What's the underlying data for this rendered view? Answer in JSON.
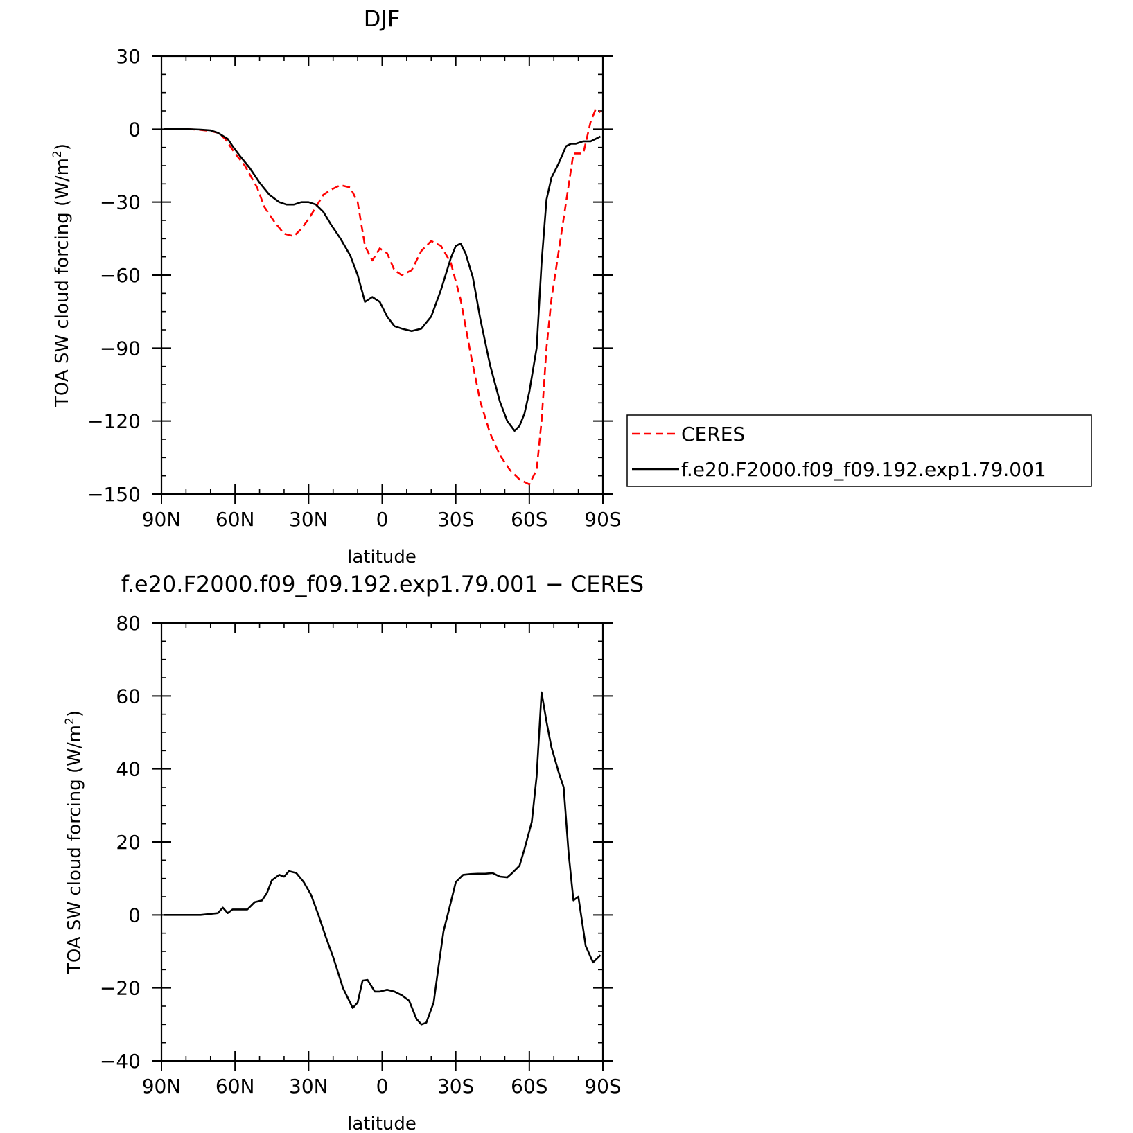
{
  "colors": {
    "ceres": "#ff0000",
    "model": "#000000",
    "axis": "#000000",
    "background": "#ffffff"
  },
  "chart_data": [
    {
      "type": "line",
      "title": "DJF",
      "xlabel": "latitude",
      "ylabel_main": "TOA SW cloud forcing (W/m",
      "ylabel_sup": "2",
      "ylabel_close": ")",
      "xlim": [
        90,
        -90
      ],
      "ylim": [
        -150,
        30
      ],
      "x_ticks": [
        {
          "value": 90,
          "label": "90N"
        },
        {
          "value": 60,
          "label": "60N"
        },
        {
          "value": 30,
          "label": "30N"
        },
        {
          "value": 0,
          "label": "0"
        },
        {
          "value": -30,
          "label": "30S"
        },
        {
          "value": -60,
          "label": "60S"
        },
        {
          "value": -90,
          "label": "90S"
        }
      ],
      "y_ticks": [
        {
          "value": 30,
          "label": "30"
        },
        {
          "value": 0,
          "label": "0"
        },
        {
          "value": -30,
          "label": "−30"
        },
        {
          "value": -60,
          "label": "−60"
        },
        {
          "value": -90,
          "label": "−90"
        },
        {
          "value": -120,
          "label": "−120"
        },
        {
          "value": -150,
          "label": "−150"
        }
      ],
      "legend": "right",
      "series": [
        {
          "name": "CERES",
          "style": "dashed",
          "color": "#ff0000",
          "x": [
            89,
            84,
            79,
            74,
            70,
            67,
            64,
            60,
            56,
            51,
            48,
            44,
            40,
            36,
            33,
            30,
            27,
            24,
            21,
            17,
            13,
            10,
            7,
            4,
            1,
            -2,
            -5,
            -8,
            -12,
            -16,
            -20,
            -24,
            -28,
            -32,
            -36,
            -40,
            -44,
            -48,
            -52,
            -56,
            -60,
            -63,
            -65,
            -67,
            -69,
            -72,
            -75,
            -78,
            -80,
            -82,
            -85,
            -87,
            -89
          ],
          "y": [
            0,
            0,
            0,
            -0.3,
            -0.8,
            -1.5,
            -4,
            -10,
            -15,
            -24,
            -32,
            -38,
            -43,
            -44,
            -41,
            -37,
            -32,
            -27,
            -25,
            -23,
            -24,
            -30,
            -48,
            -54,
            -49,
            -51,
            -58,
            -60,
            -58,
            -50,
            -46,
            -48,
            -55,
            -70,
            -92,
            -112,
            -125,
            -134,
            -140,
            -144,
            -146,
            -140,
            -120,
            -90,
            -70,
            -50,
            -30,
            -10,
            -10,
            -10,
            3,
            8,
            7
          ]
        },
        {
          "name": "f.e20.F2000.f09_f09.192.exp1.79.001",
          "style": "solid",
          "color": "#000000",
          "x": [
            89,
            84,
            79,
            74,
            70,
            67,
            63,
            61,
            58,
            54,
            50,
            46,
            42,
            39,
            36,
            33,
            30,
            27,
            24,
            21,
            17,
            13,
            10,
            7,
            4,
            1,
            -2,
            -5,
            -8,
            -12,
            -16,
            -20,
            -24,
            -28,
            -30,
            -32,
            -34,
            -37,
            -40,
            -44,
            -48,
            -51,
            -54,
            -56,
            -58,
            -60,
            -63,
            -65,
            -67,
            -69,
            -72,
            -75,
            -77,
            -79,
            -82,
            -85,
            -87,
            -89
          ],
          "y": [
            0,
            0,
            0,
            -0.2,
            -0.5,
            -1.5,
            -4,
            -7,
            -11,
            -16,
            -22,
            -27,
            -30,
            -31,
            -31,
            -30,
            -30,
            -31,
            -34,
            -39,
            -45,
            -52,
            -60,
            -71,
            -69,
            -71,
            -77,
            -81,
            -82,
            -83,
            -82,
            -77,
            -66,
            -53,
            -48,
            -47,
            -51,
            -61,
            -78,
            -97,
            -112,
            -120,
            -124,
            -122,
            -117,
            -108,
            -90,
            -55,
            -29,
            -20,
            -14,
            -7,
            -6,
            -6,
            -5,
            -5,
            -4,
            -3
          ]
        }
      ]
    },
    {
      "type": "line",
      "title": "f.e20.F2000.f09_f09.192.exp1.79.001 − CERES",
      "xlabel": "latitude",
      "ylabel_main": "TOA SW cloud forcing (W/m",
      "ylabel_sup": "2",
      "ylabel_close": ")",
      "xlim": [
        90,
        -90
      ],
      "ylim": [
        -40,
        80
      ],
      "x_ticks": [
        {
          "value": 90,
          "label": "90N"
        },
        {
          "value": 60,
          "label": "60N"
        },
        {
          "value": 30,
          "label": "30N"
        },
        {
          "value": 0,
          "label": "0"
        },
        {
          "value": -30,
          "label": "30S"
        },
        {
          "value": -60,
          "label": "60S"
        },
        {
          "value": -90,
          "label": "90S"
        }
      ],
      "y_ticks": [
        {
          "value": 80,
          "label": "80"
        },
        {
          "value": 60,
          "label": "60"
        },
        {
          "value": 40,
          "label": "40"
        },
        {
          "value": 20,
          "label": "20"
        },
        {
          "value": 0,
          "label": "0"
        },
        {
          "value": -20,
          "label": "−20"
        },
        {
          "value": -40,
          "label": "−40"
        }
      ],
      "series": [
        {
          "style": "solid",
          "color": "#000000",
          "x": [
            89,
            84,
            79,
            74,
            70,
            67,
            65,
            63,
            61,
            58,
            55,
            52,
            49,
            47,
            45,
            42,
            40,
            38,
            35,
            32,
            29,
            26,
            23,
            20,
            16,
            12,
            10,
            8,
            6,
            3,
            1,
            -2,
            -5,
            -8,
            -11,
            -14,
            -16,
            -18,
            -21,
            -23,
            -25,
            -28,
            -30,
            -33,
            -36,
            -39,
            -42,
            -45,
            -48,
            -51,
            -53,
            -56,
            -58,
            -61,
            -63,
            -65,
            -67,
            -69,
            -72,
            -74,
            -76,
            -78,
            -80,
            -83,
            -86,
            -89
          ],
          "y": [
            0,
            0,
            0,
            0,
            0.3,
            0.5,
            2,
            0.5,
            1.5,
            1.5,
            1.5,
            3.5,
            4,
            6,
            9.5,
            11,
            10.5,
            12,
            11.5,
            9,
            5.5,
            0,
            -6,
            -11.5,
            -20,
            -25.5,
            -24,
            -18,
            -17.8,
            -21,
            -21,
            -20.5,
            -21,
            -22,
            -23.5,
            -28.5,
            -30,
            -29.5,
            -24,
            -14,
            -4.5,
            3.5,
            9,
            11,
            11.2,
            11.3,
            11.3,
            11.5,
            10.5,
            10.3,
            11.5,
            13.5,
            18,
            25.5,
            38,
            61,
            53,
            46,
            39,
            35,
            17,
            4,
            5,
            -8.5,
            -13,
            -11
          ]
        }
      ]
    }
  ]
}
